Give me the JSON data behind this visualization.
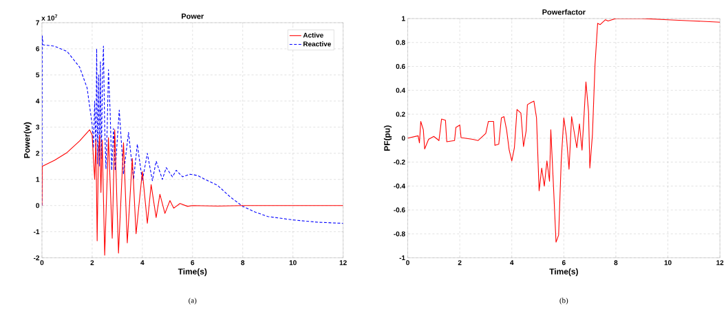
{
  "chart_data": [
    {
      "type": "line",
      "title": "Power",
      "xlabel": "Time(s)",
      "ylabel": "Power(w)",
      "annotations": [
        "x 10$^{7}$",
        "(a)"
      ],
      "xlim": [
        0,
        12
      ],
      "xticks": [
        0,
        2,
        4,
        6,
        8,
        10,
        12
      ],
      "ylim": [
        -2,
        7
      ],
      "yticks": [
        -2,
        -1,
        0,
        1,
        2,
        3,
        4,
        5,
        6,
        7
      ],
      "grid": true,
      "legend": "top right",
      "series": [
        {
          "name": "Active",
          "color": "#ff0000",
          "line_style": "solid",
          "x": [
            0,
            0.01,
            0.5,
            1,
            1.5,
            1.9,
            2.0,
            2.1,
            2.15,
            2.2,
            2.25,
            2.3,
            2.35,
            2.4,
            2.5,
            2.65,
            2.8,
            2.9,
            3.05,
            3.25,
            3.4,
            3.6,
            3.75,
            4.0,
            4.2,
            4.35,
            4.55,
            4.7,
            4.9,
            5.1,
            5.25,
            5.5,
            5.8,
            6,
            7,
            8,
            12
          ],
          "values": [
            0,
            1.5,
            1.73,
            2.03,
            2.47,
            2.9,
            2.7,
            1.0,
            2.5,
            -1.35,
            2.0,
            2.7,
            0.5,
            2.5,
            -1.9,
            2.6,
            -1.25,
            2.9,
            -1.82,
            2.4,
            -1.43,
            1.8,
            -1.08,
            1.3,
            -0.68,
            0.8,
            -0.46,
            0.43,
            -0.3,
            0.19,
            -0.1,
            0.08,
            -0.03,
            0,
            -0.02,
            0,
            0
          ]
        },
        {
          "name": "Reactive",
          "color": "#0000ff",
          "line_style": "dashed",
          "x": [
            0,
            0.01,
            0.05,
            0.5,
            1,
            1.5,
            1.8,
            2.0,
            2.05,
            2.1,
            2.15,
            2.18,
            2.22,
            2.26,
            2.3,
            2.33,
            2.37,
            2.41,
            2.45,
            2.5,
            2.55,
            2.6,
            2.65,
            2.72,
            2.78,
            2.85,
            2.92,
            3.08,
            3.25,
            3.45,
            3.65,
            3.8,
            4.0,
            4.2,
            4.4,
            4.55,
            4.8,
            4.95,
            5.2,
            5.35,
            5.6,
            5.9,
            6.2,
            6.5,
            7,
            7.5,
            8,
            8.5,
            9,
            10,
            11,
            12
          ],
          "values": [
            0,
            6.5,
            6.15,
            6.1,
            5.9,
            5.3,
            4.5,
            3.1,
            2.2,
            4.0,
            2.0,
            6.0,
            1.6,
            5.0,
            1.5,
            5.5,
            1.8,
            4.8,
            6.1,
            3.0,
            1.4,
            3.0,
            5.2,
            3.5,
            1.35,
            2.95,
            1.35,
            3.65,
            1.2,
            2.8,
            1.0,
            2.35,
            0.95,
            2.0,
            0.95,
            1.7,
            1.0,
            1.45,
            1.1,
            1.35,
            1.1,
            1.2,
            1.15,
            1.0,
            0.77,
            0.33,
            -0.03,
            -0.25,
            -0.42,
            -0.55,
            -0.64,
            -0.68
          ]
        }
      ]
    },
    {
      "type": "line",
      "title": "Powerfactor",
      "xlabel": "Time(s)",
      "ylabel": "PF(pu)",
      "annotations": [
        "(b)"
      ],
      "xlim": [
        0,
        12
      ],
      "xticks": [
        0,
        2,
        4,
        6,
        8,
        10,
        12
      ],
      "ylim": [
        -1,
        1
      ],
      "yticks": [
        -1,
        -0.8,
        -0.6,
        -0.4,
        -0.2,
        0,
        0.2,
        0.4,
        0.6,
        0.8,
        1
      ],
      "grid": true,
      "legend": false,
      "series": [
        {
          "color": "#ff0000",
          "line_style": "solid",
          "x": [
            0,
            0.4,
            0.45,
            0.5,
            0.6,
            0.65,
            0.8,
            1.0,
            1.2,
            1.3,
            1.45,
            1.5,
            1.8,
            1.85,
            2.0,
            2.05,
            2.5,
            2.7,
            3.0,
            3.1,
            3.3,
            3.35,
            3.5,
            3.6,
            3.7,
            3.8,
            3.9,
            4.0,
            4.1,
            4.2,
            4.35,
            4.45,
            4.55,
            4.6,
            4.75,
            4.85,
            4.95,
            5.05,
            5.15,
            5.25,
            5.35,
            5.45,
            5.5,
            5.6,
            5.7,
            5.8,
            5.9,
            6.0,
            6.1,
            6.2,
            6.3,
            6.5,
            6.6,
            6.7,
            6.85,
            6.95,
            7.0,
            7.1,
            7.2,
            7.3,
            7.4,
            7.6,
            7.7,
            8,
            9,
            10,
            11,
            12
          ],
          "values": [
            0.0,
            0.02,
            -0.04,
            0.14,
            0.07,
            -0.09,
            -0.01,
            0.015,
            -0.02,
            0.16,
            0.15,
            -0.03,
            -0.02,
            0.09,
            0.11,
            0.005,
            -0.01,
            -0.02,
            0.04,
            0.14,
            0.14,
            -0.06,
            -0.05,
            0.17,
            0.18,
            0.07,
            -0.1,
            -0.19,
            -0.08,
            0.24,
            0.21,
            -0.07,
            0.06,
            0.28,
            0.3,
            0.31,
            0.17,
            -0.44,
            -0.25,
            -0.4,
            -0.19,
            -0.36,
            0.07,
            -0.39,
            -0.87,
            -0.81,
            -0.19,
            0.17,
            0.015,
            -0.26,
            0.18,
            -0.08,
            0.12,
            -0.1,
            0.47,
            0.22,
            -0.25,
            0.03,
            0.62,
            0.96,
            0.95,
            0.99,
            0.98,
            1.0,
            1.0,
            0.99,
            0.98,
            0.97
          ]
        }
      ]
    }
  ]
}
